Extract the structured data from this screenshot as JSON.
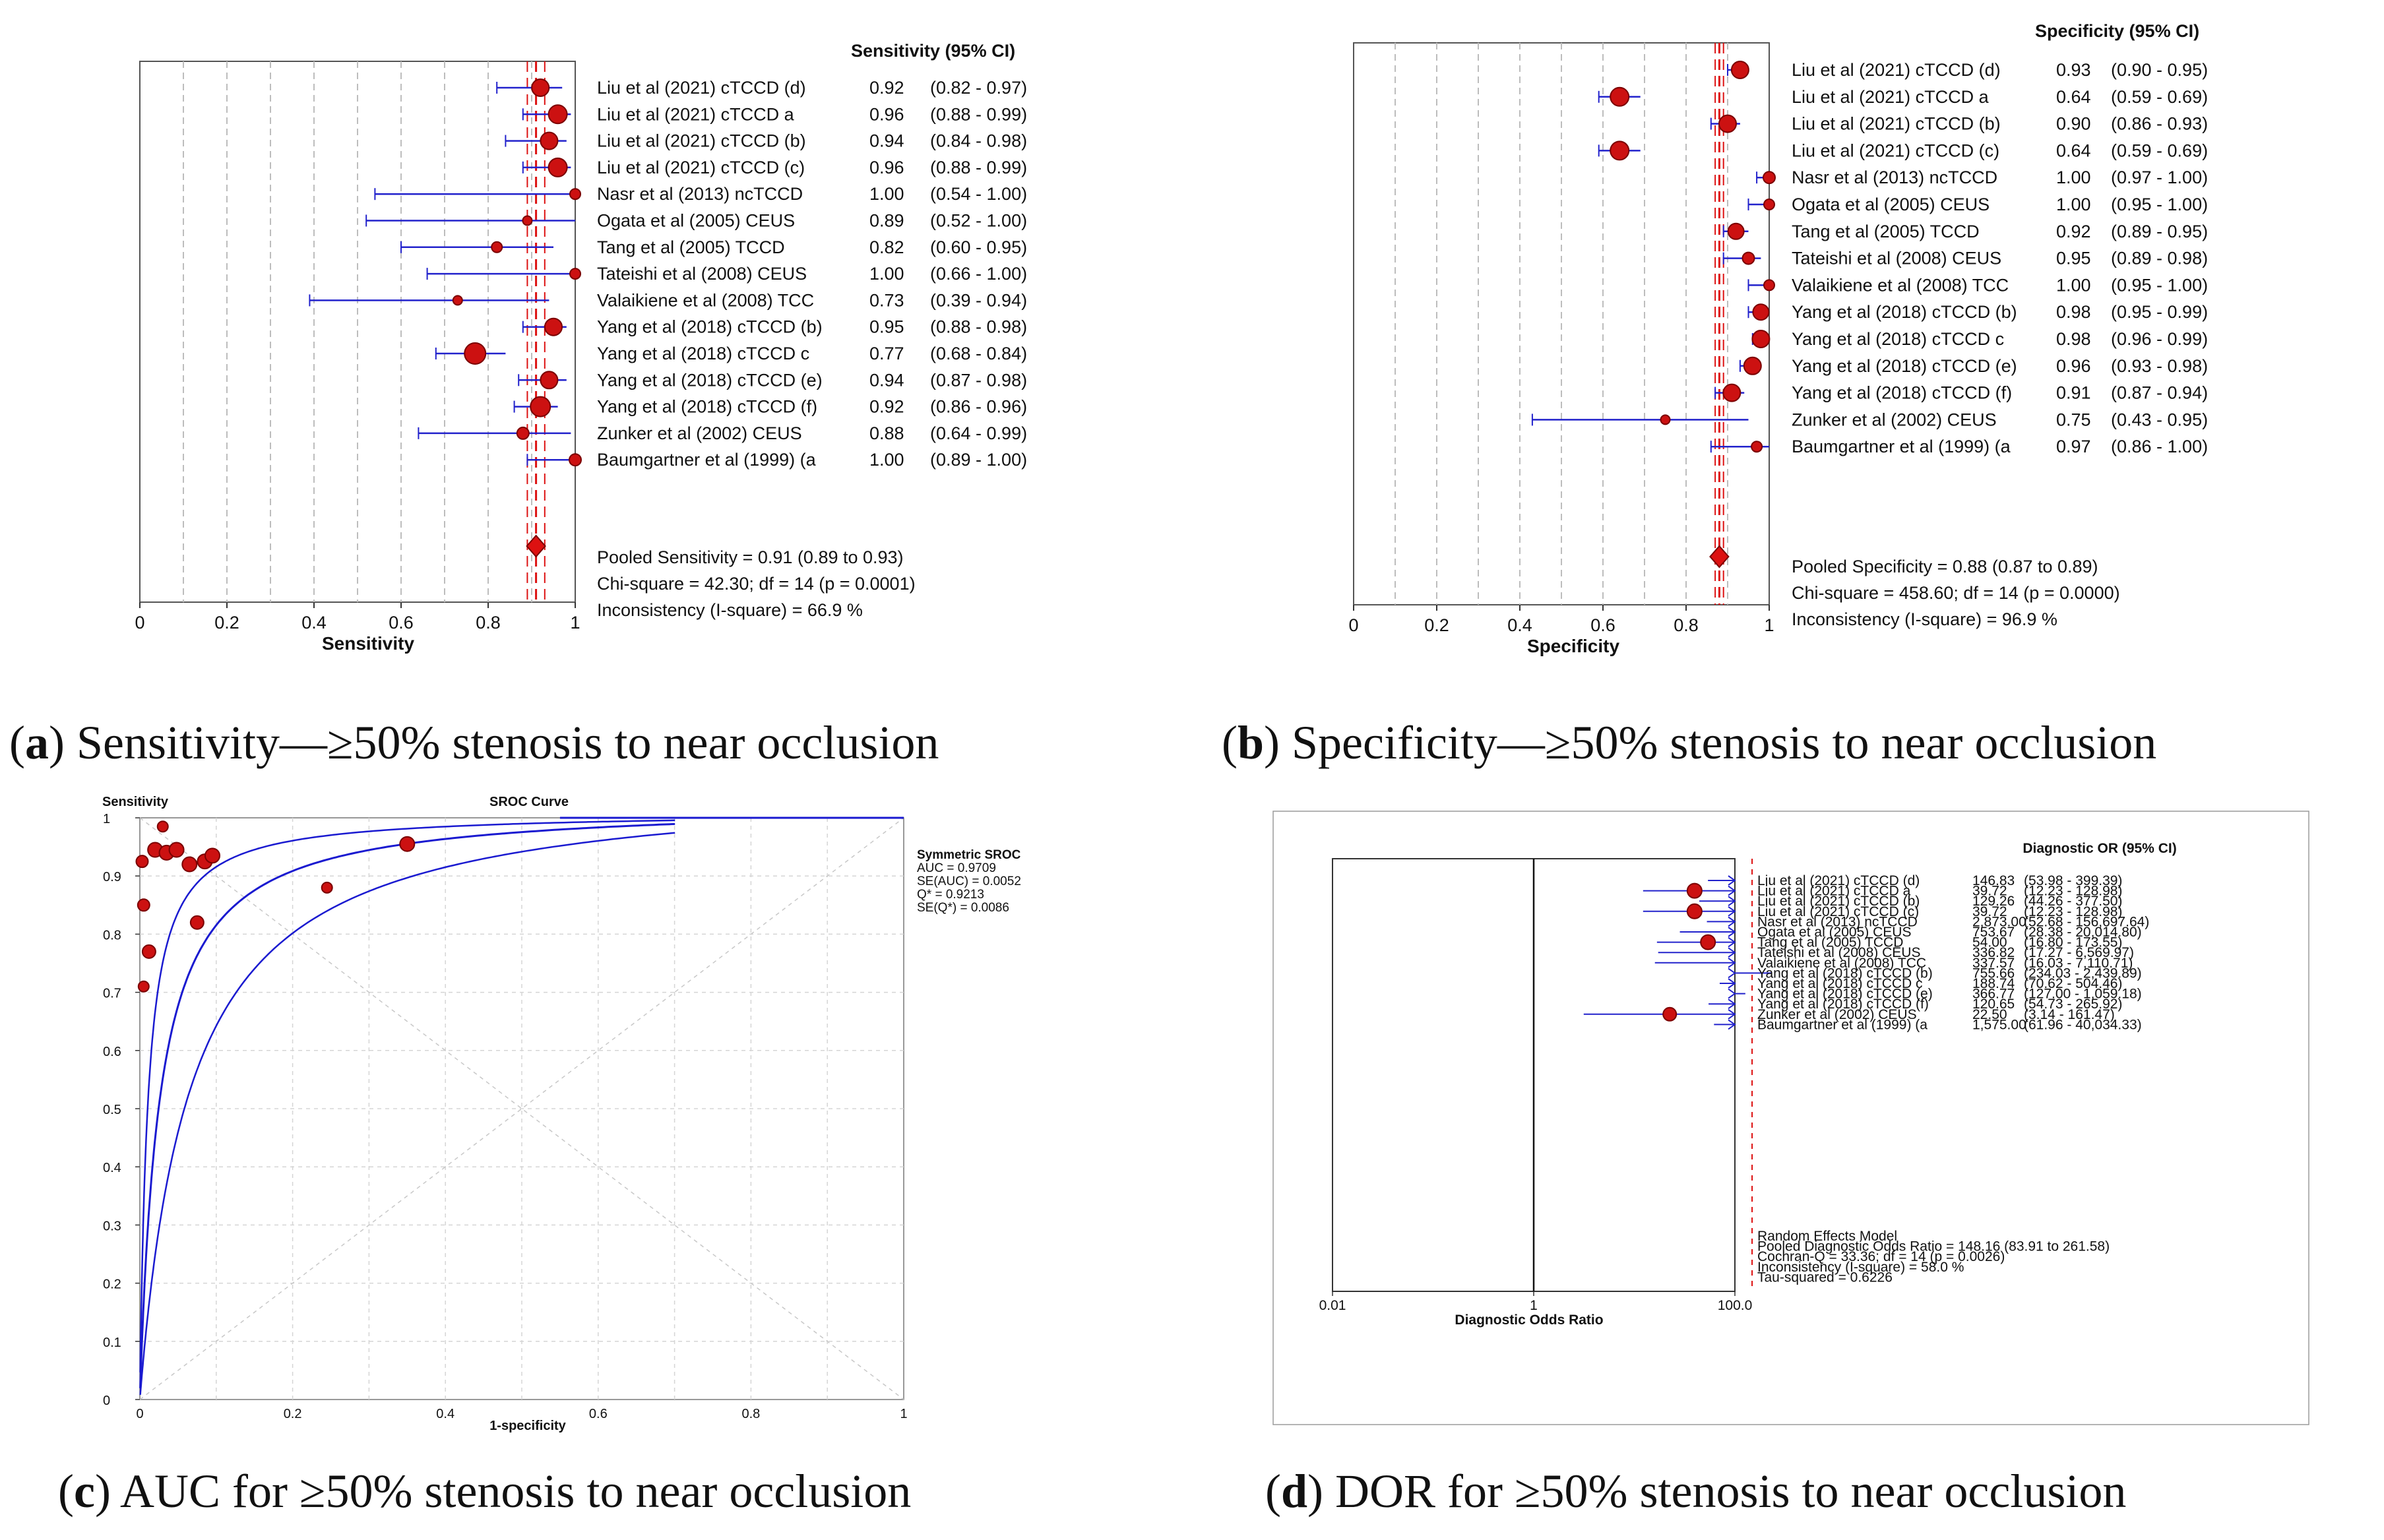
{
  "colors": {
    "marker": "#cc1111",
    "marker_edge": "#7a0000",
    "ci": "#2222cc",
    "pooled": "#dd1111",
    "axis": "#000000",
    "grid": "#bdbdbd"
  },
  "chart_data": [
    {
      "panel": "a",
      "type": "forest",
      "header": "Sensitivity (95% CI)",
      "xlabel": "Sensitivity",
      "xlim": [
        0,
        1
      ],
      "xticks": [
        "0",
        "0.2",
        "0.4",
        "0.6",
        "0.8",
        "1"
      ],
      "pooled_value": 0.91,
      "pooled_ci": [
        0.89,
        0.93
      ],
      "studies": [
        {
          "label": "Liu et al (2021) cTCCD (d)",
          "est_text": "0.92",
          "ci_text": "(0.82 - 0.97)",
          "est": 0.92,
          "lo": 0.82,
          "hi": 0.97,
          "size": 13
        },
        {
          "label": "Liu et al (2021) cTCCD a",
          "est_text": "0.96",
          "ci_text": "(0.88 - 0.99)",
          "est": 0.96,
          "lo": 0.88,
          "hi": 0.99,
          "size": 14
        },
        {
          "label": "Liu et al (2021) cTCCD (b)",
          "est_text": "0.94",
          "ci_text": "(0.84 - 0.98)",
          "est": 0.94,
          "lo": 0.84,
          "hi": 0.98,
          "size": 13
        },
        {
          "label": "Liu et al (2021) cTCCD (c)",
          "est_text": "0.96",
          "ci_text": "(0.88 - 0.99)",
          "est": 0.96,
          "lo": 0.88,
          "hi": 0.99,
          "size": 14
        },
        {
          "label": "Nasr et al (2013) ncTCCD",
          "est_text": "1.00",
          "ci_text": "(0.54 - 1.00)",
          "est": 1.0,
          "lo": 0.54,
          "hi": 1.0,
          "size": 8
        },
        {
          "label": "Ogata et al (2005) CEUS",
          "est_text": "0.89",
          "ci_text": "(0.52 - 1.00)",
          "est": 0.89,
          "lo": 0.52,
          "hi": 1.0,
          "size": 7
        },
        {
          "label": "Tang et al (2005) TCCD",
          "est_text": "0.82",
          "ci_text": "(0.60 - 0.95)",
          "est": 0.82,
          "lo": 0.6,
          "hi": 0.95,
          "size": 8
        },
        {
          "label": "Tateishi et al (2008) CEUS",
          "est_text": "1.00",
          "ci_text": "(0.66 - 1.00)",
          "est": 1.0,
          "lo": 0.66,
          "hi": 1.0,
          "size": 8
        },
        {
          "label": "Valaikiene et al (2008) TCC",
          "est_text": "0.73",
          "ci_text": "(0.39 - 0.94)",
          "est": 0.73,
          "lo": 0.39,
          "hi": 0.94,
          "size": 7
        },
        {
          "label": "Yang et al (2018) cTCCD (b)",
          "est_text": "0.95",
          "ci_text": "(0.88 - 0.98)",
          "est": 0.95,
          "lo": 0.88,
          "hi": 0.98,
          "size": 13
        },
        {
          "label": "Yang et al (2018) cTCCD c",
          "est_text": "0.77",
          "ci_text": "(0.68 - 0.84)",
          "est": 0.77,
          "lo": 0.68,
          "hi": 0.84,
          "size": 16
        },
        {
          "label": "Yang et al (2018) cTCCD (e)",
          "est_text": "0.94",
          "ci_text": "(0.87 - 0.98)",
          "est": 0.94,
          "lo": 0.87,
          "hi": 0.98,
          "size": 13
        },
        {
          "label": "Yang et al (2018) cTCCD (f)",
          "est_text": "0.92",
          "ci_text": "(0.86 - 0.96)",
          "est": 0.92,
          "lo": 0.86,
          "hi": 0.96,
          "size": 15
        },
        {
          "label": "Zunker et al (2002) CEUS",
          "est_text": "0.88",
          "ci_text": "(0.64 - 0.99)",
          "est": 0.88,
          "lo": 0.64,
          "hi": 0.99,
          "size": 9
        },
        {
          "label": "Baumgartner et al (1999) (a",
          "est_text": "1.00",
          "ci_text": "(0.89 - 1.00)",
          "est": 1.0,
          "lo": 0.89,
          "hi": 1.0,
          "size": 9
        }
      ],
      "summary_lines": [
        "Pooled Sensitivity = 0.91 (0.89 to 0.93)",
        "Chi-square = 42.30; df =  14 (p = 0.0001)",
        "Inconsistency (I-square) = 66.9 %"
      ]
    },
    {
      "panel": "b",
      "type": "forest",
      "header": "Specificity (95% CI)",
      "xlabel": "Specificity",
      "xlim": [
        0,
        1
      ],
      "xticks": [
        "0",
        "0.2",
        "0.4",
        "0.6",
        "0.8",
        "1"
      ],
      "pooled_value": 0.88,
      "pooled_ci": [
        0.87,
        0.89
      ],
      "studies": [
        {
          "label": "Liu et al (2021) cTCCD (d)",
          "est_text": "0.93",
          "ci_text": "(0.90 - 0.95)",
          "est": 0.93,
          "lo": 0.9,
          "hi": 0.95,
          "size": 13
        },
        {
          "label": "Liu et al (2021) cTCCD a",
          "est_text": "0.64",
          "ci_text": "(0.59 - 0.69)",
          "est": 0.64,
          "lo": 0.59,
          "hi": 0.69,
          "size": 14
        },
        {
          "label": "Liu et al (2021) cTCCD (b)",
          "est_text": "0.90",
          "ci_text": "(0.86 - 0.93)",
          "est": 0.9,
          "lo": 0.86,
          "hi": 0.93,
          "size": 13
        },
        {
          "label": "Liu et al (2021) cTCCD (c)",
          "est_text": "0.64",
          "ci_text": "(0.59 - 0.69)",
          "est": 0.64,
          "lo": 0.59,
          "hi": 0.69,
          "size": 14
        },
        {
          "label": "Nasr et al (2013) ncTCCD",
          "est_text": "1.00",
          "ci_text": "(0.97 - 1.00)",
          "est": 1.0,
          "lo": 0.97,
          "hi": 1.0,
          "size": 9
        },
        {
          "label": "Ogata et al (2005) CEUS",
          "est_text": "1.00",
          "ci_text": "(0.95 - 1.00)",
          "est": 1.0,
          "lo": 0.95,
          "hi": 1.0,
          "size": 8
        },
        {
          "label": "Tang et al (2005) TCCD",
          "est_text": "0.92",
          "ci_text": "(0.89 - 0.95)",
          "est": 0.92,
          "lo": 0.89,
          "hi": 0.95,
          "size": 12
        },
        {
          "label": "Tateishi et al (2008) CEUS",
          "est_text": "0.95",
          "ci_text": "(0.89 - 0.98)",
          "est": 0.95,
          "lo": 0.89,
          "hi": 0.98,
          "size": 9
        },
        {
          "label": "Valaikiene et al (2008) TCC",
          "est_text": "1.00",
          "ci_text": "(0.95 - 1.00)",
          "est": 1.0,
          "lo": 0.95,
          "hi": 1.0,
          "size": 8
        },
        {
          "label": "Yang et al (2018) cTCCD (b)",
          "est_text": "0.98",
          "ci_text": "(0.95 - 0.99)",
          "est": 0.98,
          "lo": 0.95,
          "hi": 0.99,
          "size": 12
        },
        {
          "label": "Yang et al (2018) cTCCD c",
          "est_text": "0.98",
          "ci_text": "(0.96 - 0.99)",
          "est": 0.98,
          "lo": 0.96,
          "hi": 0.99,
          "size": 13
        },
        {
          "label": "Yang et al (2018) cTCCD (e)",
          "est_text": "0.96",
          "ci_text": "(0.93 - 0.98)",
          "est": 0.96,
          "lo": 0.93,
          "hi": 0.98,
          "size": 13
        },
        {
          "label": "Yang et al (2018) cTCCD (f)",
          "est_text": "0.91",
          "ci_text": "(0.87 - 0.94)",
          "est": 0.91,
          "lo": 0.87,
          "hi": 0.94,
          "size": 13
        },
        {
          "label": "Zunker et al (2002) CEUS",
          "est_text": "0.75",
          "ci_text": "(0.43 - 0.95)",
          "est": 0.75,
          "lo": 0.43,
          "hi": 0.95,
          "size": 7
        },
        {
          "label": "Baumgartner et al (1999) (a",
          "est_text": "0.97",
          "ci_text": "(0.86 - 1.00)",
          "est": 0.97,
          "lo": 0.86,
          "hi": 1.0,
          "size": 8
        }
      ],
      "summary_lines": [
        "Pooled Specificity = 0.88 (0.87 to 0.89)",
        "Chi-square = 458.60; df =  14 (p = 0.0000)",
        "Inconsistency (I-square) = 96.9 %"
      ]
    },
    {
      "panel": "c",
      "type": "scatter",
      "ylabel": "Sensitivity",
      "title": "SROC Curve",
      "xlabel": "1-specificity",
      "xlim": [
        0,
        1
      ],
      "ylim": [
        0,
        1
      ],
      "xticks": [
        "0",
        "0.2",
        "0.4",
        "0.6",
        "0.8",
        "1"
      ],
      "yticks": [
        "0",
        "0.1",
        "0.2",
        "0.3",
        "0.4",
        "0.5",
        "0.6",
        "0.7",
        "0.8",
        "0.9",
        "1"
      ],
      "auc": 0.9709,
      "q_star": 0.9213,
      "points": [
        {
          "x": 0.003,
          "y": 0.925,
          "size": 9
        },
        {
          "x": 0.005,
          "y": 0.85,
          "size": 9
        },
        {
          "x": 0.005,
          "y": 0.71,
          "size": 8
        },
        {
          "x": 0.012,
          "y": 0.77,
          "size": 10
        },
        {
          "x": 0.02,
          "y": 0.945,
          "size": 11
        },
        {
          "x": 0.03,
          "y": 0.985,
          "size": 8
        },
        {
          "x": 0.035,
          "y": 0.94,
          "size": 11
        },
        {
          "x": 0.048,
          "y": 0.945,
          "size": 11
        },
        {
          "x": 0.065,
          "y": 0.92,
          "size": 11
        },
        {
          "x": 0.075,
          "y": 0.82,
          "size": 10
        },
        {
          "x": 0.085,
          "y": 0.925,
          "size": 11
        },
        {
          "x": 0.095,
          "y": 0.935,
          "size": 11
        },
        {
          "x": 0.245,
          "y": 0.88,
          "size": 8
        },
        {
          "x": 0.35,
          "y": 0.955,
          "size": 11
        }
      ],
      "legend_lines": [
        "Symmetric SROC",
        "AUC = 0.9709",
        "SE(AUC) = 0.0052",
        "Q* = 0.9213",
        "SE(Q*) = 0.0086"
      ]
    },
    {
      "panel": "d",
      "type": "forest-log",
      "header": "Diagnostic OR (95% CI)",
      "xlabel": "Diagnostic Odds Ratio",
      "xscale": "log",
      "xlim": [
        0.01,
        100
      ],
      "xticks": [
        "0.01",
        "1",
        "100.0"
      ],
      "studies": [
        {
          "label": "Liu et al (2021) cTCCD (d)",
          "est_text": "146.83",
          "ci_text": "(53.98 - 399.39)",
          "est": 146.83,
          "lo": 53.98,
          "hi": 399.39,
          "size": 0
        },
        {
          "label": "Liu et al (2021) cTCCD a",
          "est_text": "39.72",
          "ci_text": "(12.23 - 128.98)",
          "est": 39.72,
          "lo": 12.23,
          "hi": 128.98,
          "size": 11
        },
        {
          "label": "Liu et al (2021) cTCCD (b)",
          "est_text": "129.26",
          "ci_text": "(44.26 - 377.50)",
          "est": 129.26,
          "lo": 44.26,
          "hi": 377.5,
          "size": 0
        },
        {
          "label": "Liu et al (2021) cTCCD (c)",
          "est_text": "39.72",
          "ci_text": "(12.23 - 128.98)",
          "est": 39.72,
          "lo": 12.23,
          "hi": 128.98,
          "size": 11
        },
        {
          "label": "Nasr et al (2013) ncTCCD",
          "est_text": "2,873.00",
          "ci_text": "(52.68 - 156,697.64)",
          "est": 2873.0,
          "lo": 52.68,
          "hi": 156697.64,
          "size": 0
        },
        {
          "label": "Ogata et al (2005) CEUS",
          "est_text": "753.67",
          "ci_text": "(28.38 - 20,014.80)",
          "est": 753.67,
          "lo": 28.38,
          "hi": 20014.8,
          "size": 0
        },
        {
          "label": "Tang et al (2005) TCCD",
          "est_text": "54.00",
          "ci_text": "(16.80 - 173.55)",
          "est": 54.0,
          "lo": 16.8,
          "hi": 173.55,
          "size": 11
        },
        {
          "label": "Tateishi et al (2008) CEUS",
          "est_text": "336.82",
          "ci_text": "(17.27 - 6,569.97)",
          "est": 336.82,
          "lo": 17.27,
          "hi": 6569.97,
          "size": 0
        },
        {
          "label": "Valaikiene et al (2008) TCC",
          "est_text": "337.57",
          "ci_text": "(16.03 - 7,110.71)",
          "est": 337.57,
          "lo": 16.03,
          "hi": 7110.71,
          "size": 0
        },
        {
          "label": "Yang et al (2018) cTCCD (b)",
          "est_text": "755.66",
          "ci_text": "(234.03 - 2,439.89)",
          "est": 755.66,
          "lo": 234.03,
          "hi": 2439.89,
          "size": 0
        },
        {
          "label": "Yang et al (2018) cTCCD c",
          "est_text": "188.74",
          "ci_text": "(70.62 - 504.46)",
          "est": 188.74,
          "lo": 70.62,
          "hi": 504.46,
          "size": 0
        },
        {
          "label": "Yang et al (2018) cTCCD (e)",
          "est_text": "366.77",
          "ci_text": "(127.00 - 1,059.18)",
          "est": 366.77,
          "lo": 127.0,
          "hi": 1059.18,
          "size": 0
        },
        {
          "label": "Yang et al (2018) cTCCD (f)",
          "est_text": "120.65",
          "ci_text": "(54.73 - 265.92)",
          "est": 120.65,
          "lo": 54.73,
          "hi": 265.92,
          "size": 0
        },
        {
          "label": "Zunker et al (2002) CEUS",
          "est_text": "22.50",
          "ci_text": "(3.14 - 161.47)",
          "est": 22.5,
          "lo": 3.14,
          "hi": 161.47,
          "size": 10
        },
        {
          "label": "Baumgartner et al (1999) (a",
          "est_text": "1,575.00",
          "ci_text": "(61.96 - 40,034.33)",
          "est": 1575.0,
          "lo": 61.96,
          "hi": 40034.33,
          "size": 0
        }
      ],
      "summary_lines": [
        "Random Effects Model",
        "Pooled Diagnostic Odds Ratio = 148.16 (83.91 to 261.58)",
        "Cochran-Q = 33.36; df =  14 (p = 0.0026)",
        "Inconsistency (I-square) = 58.0 %",
        "Tau-squared = 0.6226"
      ]
    }
  ],
  "captions": [
    {
      "letter": "a",
      "rest": " Sensitivity—≥50% stenosis to near occlusion"
    },
    {
      "letter": "b",
      "rest": " Specificity—≥50% stenosis to near occlusion"
    },
    {
      "letter": "c",
      "rest": " AUC for ≥50% stenosis to near occlusion"
    },
    {
      "letter": "d",
      "rest": " DOR for ≥50% stenosis to near occlusion"
    }
  ]
}
